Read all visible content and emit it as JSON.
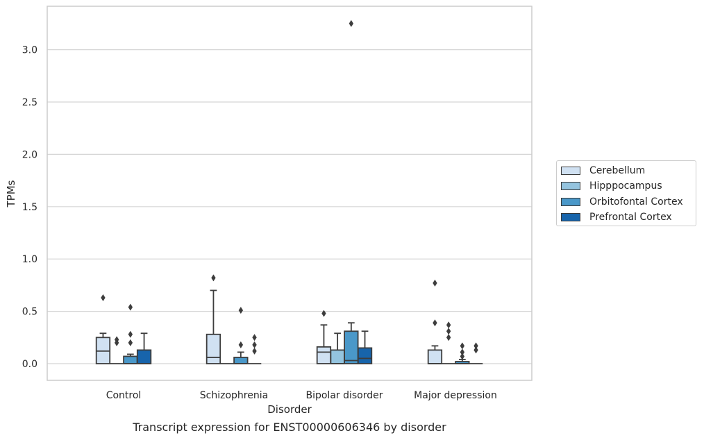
{
  "caption": "Transcript expression for ENST00000606346 by disorder",
  "legend": {
    "items": [
      {
        "label": "Cerebellum",
        "color": "#d0e1f2"
      },
      {
        "label": "Hipppocampus",
        "color": "#94c4df"
      },
      {
        "label": "Orbitofontal Cortex",
        "color": "#4a98c9"
      },
      {
        "label": "Prefrontal Cortex",
        "color": "#1764ab"
      }
    ]
  },
  "chart_data": {
    "type": "boxplot",
    "xlabel": "Disorder",
    "ylabel": "TPMs",
    "ylim": [
      -0.16,
      3.42
    ],
    "yticks": [
      "0.0",
      "0.5",
      "1.0",
      "1.5",
      "2.0",
      "2.5",
      "3.0"
    ],
    "grid": true,
    "legend_position": "right",
    "categories": [
      "Control",
      "Schizophrenia",
      "Bipolar disorder",
      "Major depression"
    ],
    "series": [
      {
        "name": "Cerebellum",
        "color": "#d0e1f2",
        "boxes": [
          {
            "q1": 0.0,
            "median": 0.12,
            "q3": 0.25,
            "whisker_low": 0.0,
            "whisker_high": 0.29,
            "outliers": [
              0.63
            ]
          },
          {
            "q1": 0.0,
            "median": 0.06,
            "q3": 0.28,
            "whisker_low": 0.0,
            "whisker_high": 0.7,
            "outliers": [
              0.82
            ]
          },
          {
            "q1": 0.0,
            "median": 0.11,
            "q3": 0.16,
            "whisker_low": 0.0,
            "whisker_high": 0.37,
            "outliers": [
              0.48
            ]
          },
          {
            "q1": 0.0,
            "median": 0.0,
            "q3": 0.13,
            "whisker_low": 0.0,
            "whisker_high": 0.17,
            "outliers": [
              0.39,
              0.77
            ]
          }
        ]
      },
      {
        "name": "Hipppocampus",
        "color": "#94c4df",
        "boxes": [
          {
            "q1": 0.0,
            "median": 0.0,
            "q3": 0.0,
            "whisker_low": 0.0,
            "whisker_high": 0.0,
            "outliers": [
              0.2,
              0.23
            ]
          },
          {
            "q1": 0.0,
            "median": 0.0,
            "q3": 0.0,
            "whisker_low": 0.0,
            "whisker_high": 0.0,
            "outliers": []
          },
          {
            "q1": 0.0,
            "median": 0.0,
            "q3": 0.13,
            "whisker_low": 0.0,
            "whisker_high": 0.29,
            "outliers": []
          },
          {
            "q1": 0.0,
            "median": 0.0,
            "q3": 0.0,
            "whisker_low": 0.0,
            "whisker_high": 0.0,
            "outliers": [
              0.25,
              0.31,
              0.37
            ]
          }
        ]
      },
      {
        "name": "Orbitofontal Cortex",
        "color": "#4a98c9",
        "boxes": [
          {
            "q1": 0.0,
            "median": 0.0,
            "q3": 0.07,
            "whisker_low": 0.0,
            "whisker_high": 0.09,
            "outliers": [
              0.2,
              0.28,
              0.54
            ]
          },
          {
            "q1": 0.0,
            "median": 0.0,
            "q3": 0.06,
            "whisker_low": 0.0,
            "whisker_high": 0.11,
            "outliers": [
              0.18,
              0.51
            ]
          },
          {
            "q1": 0.0,
            "median": 0.03,
            "q3": 0.31,
            "whisker_low": 0.0,
            "whisker_high": 0.39,
            "outliers": [
              3.25
            ]
          },
          {
            "q1": 0.0,
            "median": 0.0,
            "q3": 0.02,
            "whisker_low": 0.0,
            "whisker_high": 0.04,
            "outliers": [
              0.07,
              0.11,
              0.17
            ]
          }
        ]
      },
      {
        "name": "Prefrontal Cortex",
        "color": "#1764ab",
        "boxes": [
          {
            "q1": 0.0,
            "median": 0.0,
            "q3": 0.13,
            "whisker_low": 0.0,
            "whisker_high": 0.29,
            "outliers": []
          },
          {
            "q1": 0.0,
            "median": 0.0,
            "q3": 0.0,
            "whisker_low": 0.0,
            "whisker_high": 0.0,
            "outliers": [
              0.12,
              0.18,
              0.25
            ]
          },
          {
            "q1": 0.0,
            "median": 0.05,
            "q3": 0.15,
            "whisker_low": 0.0,
            "whisker_high": 0.31,
            "outliers": []
          },
          {
            "q1": 0.0,
            "median": 0.0,
            "q3": 0.0,
            "whisker_low": 0.0,
            "whisker_high": 0.0,
            "outliers": [
              0.13,
              0.17
            ]
          }
        ]
      }
    ]
  }
}
